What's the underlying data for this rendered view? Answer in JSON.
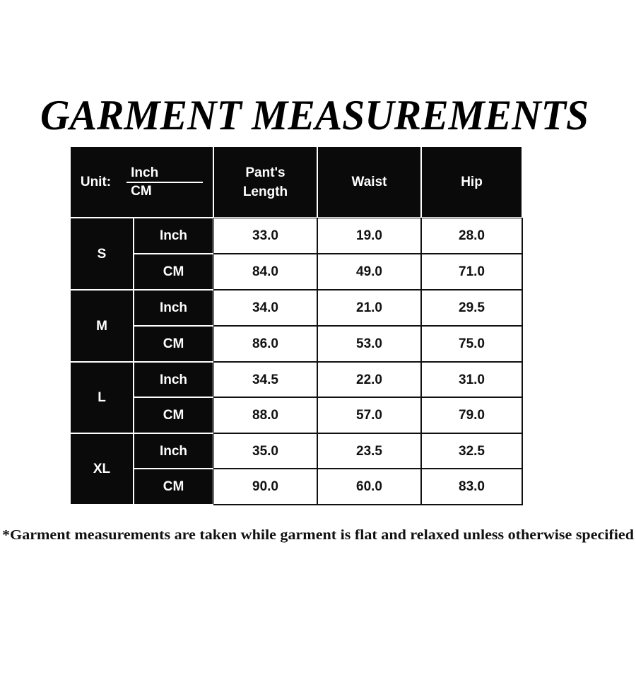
{
  "title": "GARMENT MEASUREMENTS",
  "table": {
    "unit_label": "Unit:",
    "unit_top": "Inch",
    "unit_bottom": "CM",
    "columns": [
      "Pant's Length",
      "Waist",
      "Hip"
    ],
    "rows": [
      {
        "size": "S",
        "inch": [
          "33.0",
          "19.0",
          "28.0"
        ],
        "cm": [
          "84.0",
          "49.0",
          "71.0"
        ]
      },
      {
        "size": "M",
        "inch": [
          "34.0",
          "21.0",
          "29.5"
        ],
        "cm": [
          "86.0",
          "53.0",
          "75.0"
        ]
      },
      {
        "size": "L",
        "inch": [
          "34.5",
          "22.0",
          "31.0"
        ],
        "cm": [
          "88.0",
          "57.0",
          "79.0"
        ]
      },
      {
        "size": "XL",
        "inch": [
          "35.0",
          "23.5",
          "32.5"
        ],
        "cm": [
          "90.0",
          "60.0",
          "83.0"
        ]
      }
    ],
    "inch_label": "Inch",
    "cm_label": "CM"
  },
  "footnote": "*Garment measurements are taken while garment is flat and relaxed unless otherwise specified"
}
